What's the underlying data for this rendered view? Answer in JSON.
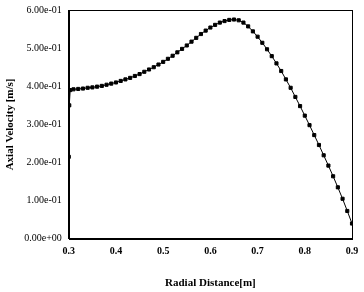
{
  "chart_data": {
    "type": "line",
    "x_label": "Radial Distance[m]",
    "y_label": "Axial Velocity [m/s]",
    "x": [
      0.3,
      0.301,
      0.303,
      0.31,
      0.32,
      0.33,
      0.34,
      0.35,
      0.36,
      0.37,
      0.38,
      0.39,
      0.4,
      0.41,
      0.42,
      0.43,
      0.44,
      0.45,
      0.46,
      0.47,
      0.48,
      0.49,
      0.5,
      0.51,
      0.52,
      0.53,
      0.54,
      0.55,
      0.56,
      0.57,
      0.58,
      0.59,
      0.6,
      0.61,
      0.62,
      0.63,
      0.64,
      0.65,
      0.66,
      0.67,
      0.68,
      0.69,
      0.7,
      0.71,
      0.72,
      0.73,
      0.74,
      0.75,
      0.76,
      0.77,
      0.78,
      0.79,
      0.8,
      0.81,
      0.82,
      0.83,
      0.84,
      0.85,
      0.86,
      0.87,
      0.88,
      0.89,
      0.9
    ],
    "values": [
      0.215,
      0.35,
      0.39,
      0.392,
      0.393,
      0.394,
      0.396,
      0.397,
      0.399,
      0.401,
      0.404,
      0.407,
      0.41,
      0.414,
      0.418,
      0.422,
      0.427,
      0.432,
      0.438,
      0.444,
      0.45,
      0.457,
      0.464,
      0.472,
      0.48,
      0.489,
      0.498,
      0.507,
      0.517,
      0.527,
      0.537,
      0.546,
      0.554,
      0.561,
      0.567,
      0.571,
      0.574,
      0.575,
      0.573,
      0.567,
      0.557,
      0.544,
      0.53,
      0.514,
      0.497,
      0.479,
      0.46,
      0.44,
      0.418,
      0.396,
      0.372,
      0.348,
      0.323,
      0.298,
      0.272,
      0.246,
      0.219,
      0.192,
      0.164,
      0.135,
      0.105,
      0.073,
      0.04
    ],
    "color": "#000000",
    "marker": "square",
    "line_style": "solid",
    "xlim": [
      0.3,
      0.9
    ],
    "xticks": [
      0.3,
      0.4,
      0.5,
      0.6,
      0.7,
      0.8,
      0.9
    ],
    "ylim": [
      0,
      0.6
    ],
    "yticks": [
      {
        "value": 0,
        "label": "0.00e+00"
      },
      {
        "value": 0.1,
        "label": "1.00e-01"
      },
      {
        "value": 0.2,
        "label": "2.00e-01"
      },
      {
        "value": 0.3,
        "label": "3.00e-01"
      },
      {
        "value": 0.4,
        "label": "4.00e-01"
      },
      {
        "value": 0.5,
        "label": "5.00e-01"
      },
      {
        "value": 0.6,
        "label": "6.00e-01"
      }
    ],
    "grid": false
  }
}
